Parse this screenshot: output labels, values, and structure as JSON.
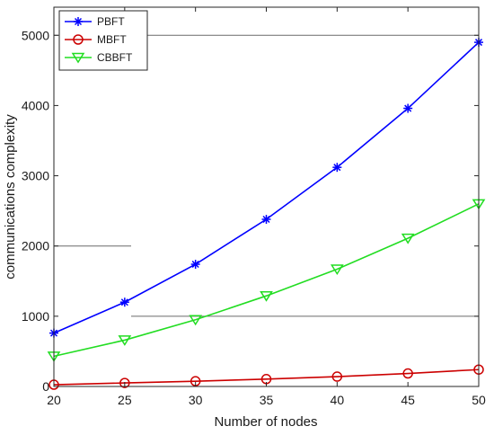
{
  "chart_data": {
    "type": "line",
    "xlabel": "Number of nodes",
    "ylabel": "communications complexity",
    "xlim": [
      20,
      50
    ],
    "ylim": [
      0,
      5400
    ],
    "x": [
      20,
      25,
      30,
      35,
      40,
      45,
      50
    ],
    "x_ticks": [
      "20",
      "25",
      "30",
      "35",
      "40",
      "45",
      "50"
    ],
    "y_ticks": [
      "0",
      "1000",
      "2000",
      "3000",
      "4000",
      "5000"
    ],
    "legend_position": "top-left",
    "series": [
      {
        "name": "PBFT",
        "color": "#0000ff",
        "marker": "asterisk",
        "values": [
          760,
          1200,
          1740,
          2380,
          3120,
          3960,
          4900
        ]
      },
      {
        "name": "MBFT",
        "color": "#cc0000",
        "marker": "circle",
        "values": [
          25,
          50,
          75,
          105,
          140,
          185,
          240
        ]
      },
      {
        "name": "CBBFT",
        "color": "#22dd22",
        "marker": "triangle-down",
        "values": [
          430,
          660,
          950,
          1290,
          1670,
          2110,
          2600
        ]
      }
    ]
  }
}
